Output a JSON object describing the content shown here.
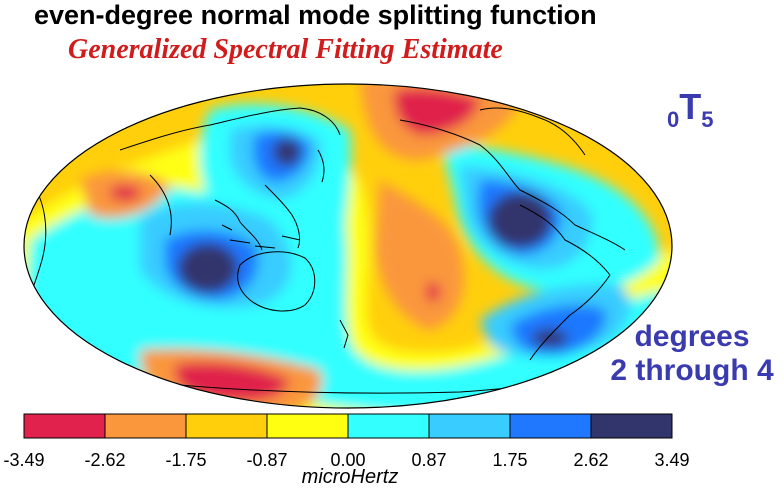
{
  "title": "even-degree normal mode splitting function",
  "subtitle": "Generalized Spectral Fitting Estimate",
  "mode": {
    "radial_order": "0",
    "type": "T",
    "angular_order": "5"
  },
  "degrees_label": {
    "line1": "degrees",
    "line2": "2 through 4"
  },
  "colorbar": {
    "unit": "microHertz",
    "ticks": [
      "-3.49",
      "-2.62",
      "-1.75",
      "-0.87",
      "0.00",
      "0.87",
      "1.75",
      "2.62",
      "3.49"
    ],
    "colors": [
      "#e0224c",
      "#fa973c",
      "#ffcf0c",
      "#ffff12",
      "#33ffff",
      "#39ccff",
      "#1f78ff",
      "#32356c"
    ]
  }
}
